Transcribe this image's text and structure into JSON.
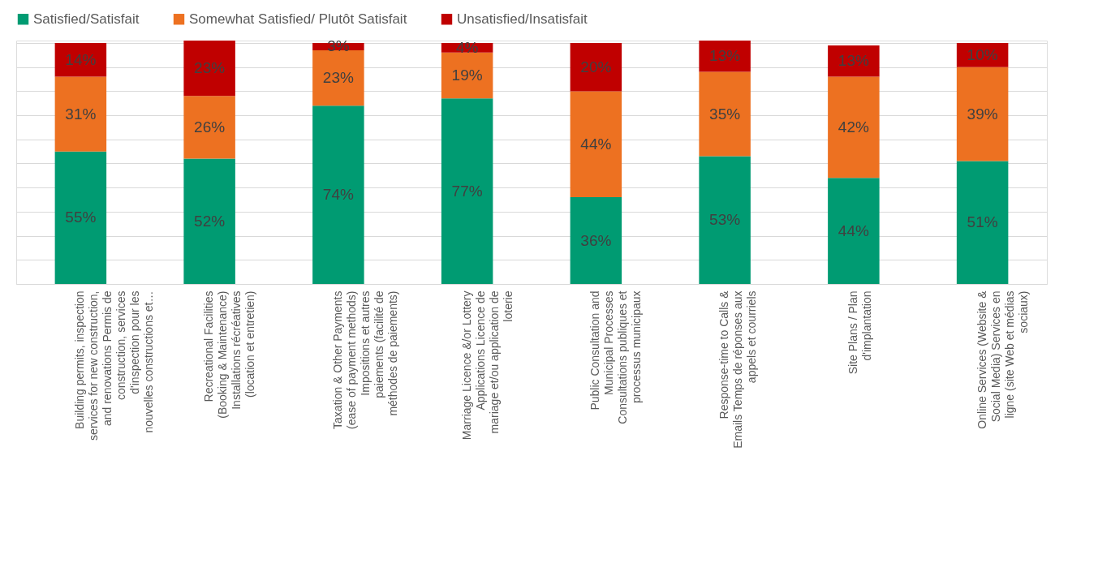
{
  "chart_data": {
    "type": "bar",
    "stacked": true,
    "legend": "top",
    "grid": "y",
    "tick_labels": "x",
    "categories": [
      "Building permits, inspection services for new construction, and renovations Permis de construction, services d'inspection pour les nouvelles constructions et…",
      "Recreational Facilities (Booking & Maintenance) Installations récréatives (location et entretien)",
      "Taxation & Other Payments (ease of payment methods) Impositions et autres paiements (facilité de méthodes de paiements)",
      "Marriage Licence &/or Lottery Applications Licence de mariage et/ou application de loterie",
      "Public Consultation and Municipal Processes Consultations publiques et processus municipaux",
      "Response-time to Calls & Emails Temps de réponses aux appels et courriels",
      "Site Plans / Plan d'implantation",
      "Online Services (Website & Social Media) Services en ligne (site Web et médias sociaux)"
    ],
    "series": [
      {
        "name": "Satisfied/Satisfait",
        "color": "#009b72",
        "values": [
          55,
          52,
          74,
          77,
          36,
          53,
          44,
          51
        ],
        "value_labels": [
          "55%",
          "52%",
          "74%",
          "77%",
          "36%",
          "53%",
          "44%",
          "51%"
        ]
      },
      {
        "name": "Somewhat Satisfied/ Plutôt Satisfait",
        "color": "#ed7121",
        "values": [
          31,
          26,
          23,
          19,
          44,
          35,
          42,
          39
        ],
        "value_labels": [
          "31%",
          "26%",
          "23%",
          "19%",
          "44%",
          "35%",
          "42%",
          "39%"
        ]
      },
      {
        "name": "Unsatisfied/Insatisfait",
        "color": "#c00000",
        "values": [
          14,
          23,
          3,
          4,
          20,
          13,
          13,
          10
        ],
        "value_labels": [
          "14%",
          "23%",
          "3%",
          "4%",
          "20%",
          "13%",
          "13%",
          "10%"
        ]
      }
    ]
  }
}
